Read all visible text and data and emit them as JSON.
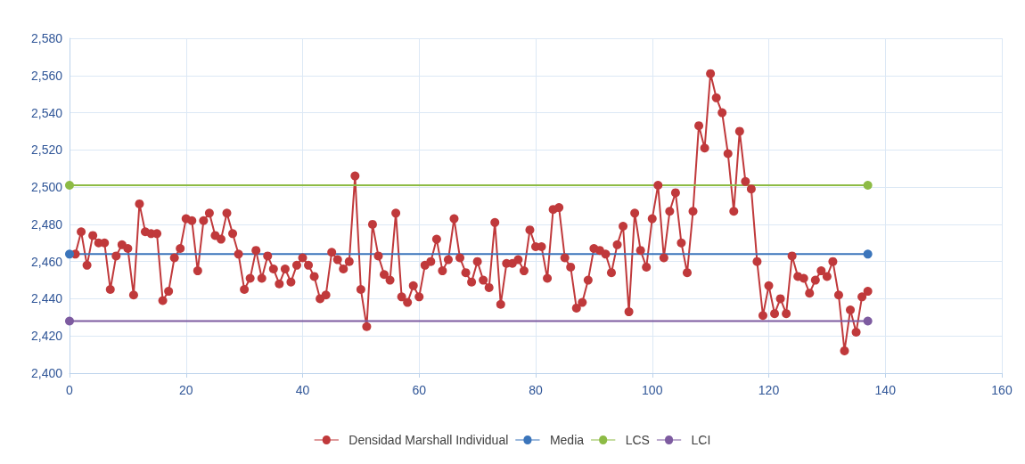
{
  "chart_data": {
    "type": "line",
    "marker": "circle",
    "grid": true,
    "legend": "bottom",
    "xlim": [
      0,
      160
    ],
    "xticks": [
      0,
      20,
      40,
      60,
      80,
      100,
      120,
      140,
      160
    ],
    "ylim": [
      2400,
      2580
    ],
    "yticks": [
      {
        "value": 2400,
        "label": "2,400"
      },
      {
        "value": 2420,
        "label": "2,420"
      },
      {
        "value": 2440,
        "label": "2,440"
      },
      {
        "value": 2460,
        "label": "2,460"
      },
      {
        "value": 2480,
        "label": "2,480"
      },
      {
        "value": 2500,
        "label": "2,500"
      },
      {
        "value": 2520,
        "label": "2,520"
      },
      {
        "value": 2540,
        "label": "2,540"
      },
      {
        "value": 2560,
        "label": "2,560"
      },
      {
        "value": 2580,
        "label": "2,580"
      }
    ],
    "series": [
      {
        "name": "Densidad Marshall Individual",
        "color": "#c0393b",
        "x": [
          1,
          2,
          3,
          4,
          5,
          6,
          7,
          8,
          9,
          10,
          11,
          12,
          13,
          14,
          15,
          16,
          17,
          18,
          19,
          20,
          21,
          22,
          23,
          24,
          25,
          26,
          27,
          28,
          29,
          30,
          31,
          32,
          33,
          34,
          35,
          36,
          37,
          38,
          39,
          40,
          41,
          42,
          43,
          44,
          45,
          46,
          47,
          48,
          49,
          50,
          51,
          52,
          53,
          54,
          55,
          56,
          57,
          58,
          59,
          60,
          61,
          62,
          63,
          64,
          65,
          66,
          67,
          68,
          69,
          70,
          71,
          72,
          73,
          74,
          75,
          76,
          77,
          78,
          79,
          80,
          81,
          82,
          83,
          84,
          85,
          86,
          87,
          88,
          89,
          90,
          91,
          92,
          93,
          94,
          95,
          96,
          97,
          98,
          99,
          100,
          101,
          102,
          103,
          104,
          105,
          106,
          107,
          108,
          109,
          110,
          111,
          112,
          113,
          114,
          115,
          116,
          117,
          118,
          119,
          120,
          121,
          122,
          123,
          124,
          125,
          126,
          127,
          128,
          129,
          130,
          131,
          132,
          133,
          134,
          135,
          136,
          137
        ],
        "values": [
          2464,
          2476,
          2458,
          2474,
          2470,
          2470,
          2445,
          2463,
          2469,
          2467,
          2442,
          2491,
          2476,
          2475,
          2475,
          2439,
          2444,
          2462,
          2467,
          2483,
          2482,
          2455,
          2482,
          2486,
          2474,
          2472,
          2486,
          2475,
          2464,
          2445,
          2451,
          2466,
          2451,
          2463,
          2456,
          2448,
          2456,
          2449,
          2458,
          2462,
          2458,
          2452,
          2440,
          2442,
          2465,
          2461,
          2456,
          2460,
          2506,
          2445,
          2425,
          2480,
          2463,
          2453,
          2450,
          2486,
          2441,
          2438,
          2447,
          2441,
          2458,
          2460,
          2472,
          2455,
          2461,
          2483,
          2462,
          2454,
          2449,
          2460,
          2450,
          2446,
          2481,
          2437,
          2459,
          2459,
          2461,
          2455,
          2477,
          2468,
          2468,
          2451,
          2488,
          2489,
          2462,
          2457,
          2435,
          2438,
          2450,
          2467,
          2466,
          2464,
          2454,
          2469,
          2479,
          2433,
          2486,
          2466,
          2457,
          2483,
          2501,
          2462,
          2487,
          2497,
          2470,
          2454,
          2487,
          2533,
          2521,
          2561,
          2548,
          2540,
          2518,
          2487,
          2530,
          2503,
          2499,
          2460,
          2431,
          2447,
          2432,
          2440,
          2432,
          2463,
          2452,
          2451,
          2443,
          2450,
          2455,
          2452,
          2460,
          2442,
          2412,
          2434,
          2422,
          2441,
          2444
        ]
      },
      {
        "name": "Media",
        "color": "#3b75bb",
        "x": [
          0,
          137
        ],
        "values": [
          2464,
          2464
        ]
      },
      {
        "name": "LCS",
        "color": "#8dbb45",
        "x": [
          0,
          137
        ],
        "values": [
          2501,
          2501
        ]
      },
      {
        "name": "LCI",
        "color": "#7d5ba0",
        "x": [
          0,
          137
        ],
        "values": [
          2428,
          2428
        ]
      }
    ]
  }
}
